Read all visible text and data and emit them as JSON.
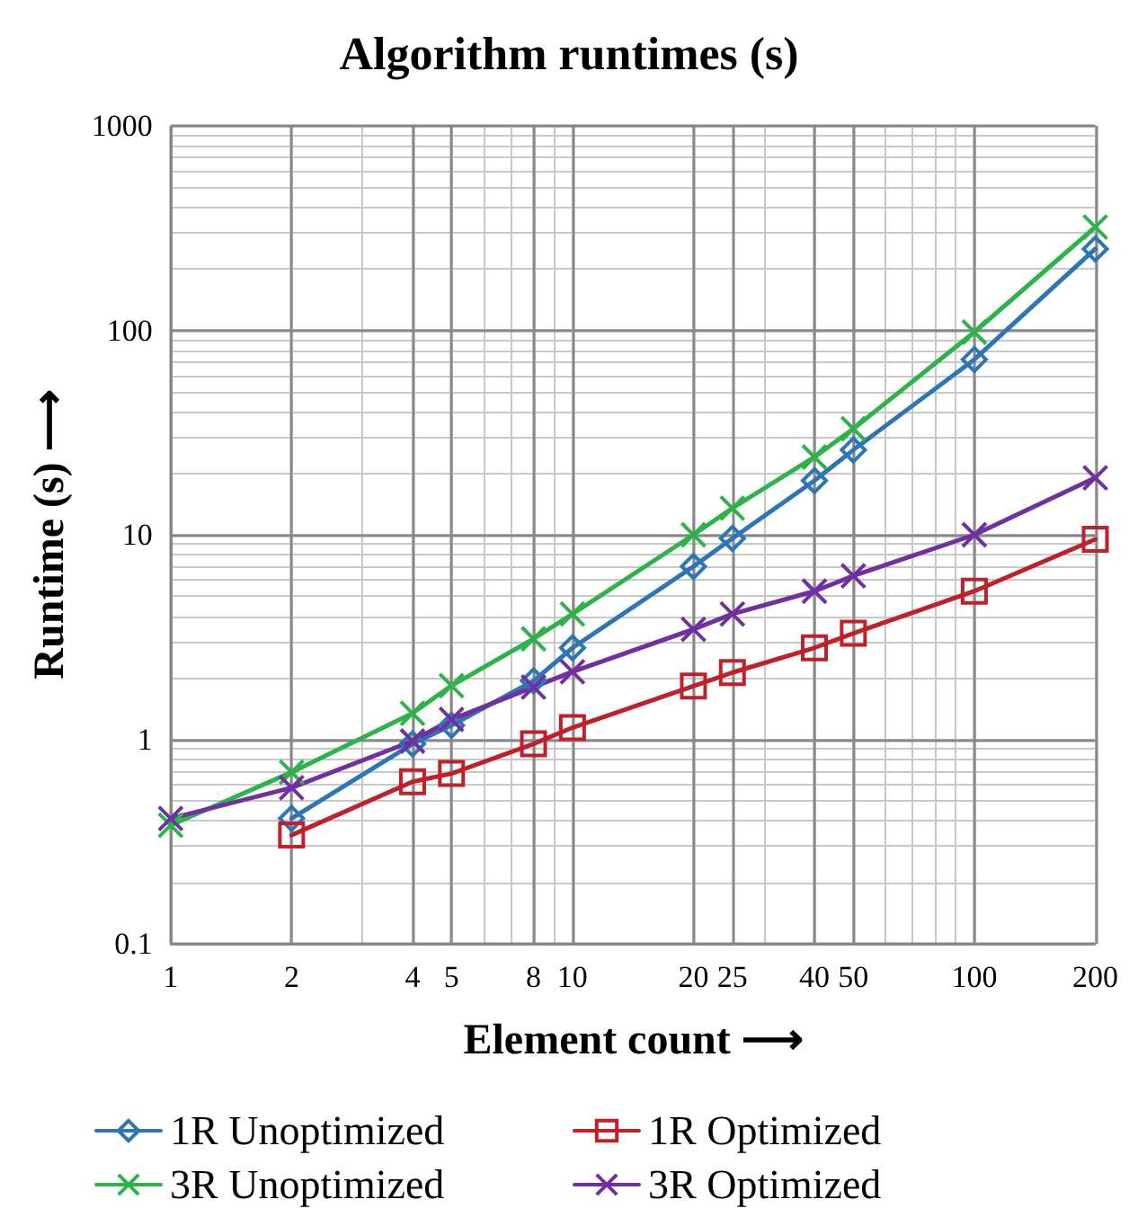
{
  "chart_data": {
    "type": "line",
    "title": "Algorithm runtimes (s)",
    "xlabel": "Element count ⟶",
    "ylabel": "Runtime (s) ⟶",
    "x": [
      1,
      2,
      4,
      5,
      8,
      10,
      20,
      25,
      40,
      50,
      100,
      200
    ],
    "series": [
      {
        "name": "1R Unoptimized",
        "color": "#2e75b6",
        "marker": "diamond",
        "values": [
          null,
          0.41,
          0.95,
          1.17,
          1.93,
          2.8,
          7.0,
          9.6,
          18.4,
          26,
          72,
          250
        ]
      },
      {
        "name": "1R Optimized",
        "color": "#c0202a",
        "marker": "square",
        "values": [
          null,
          0.34,
          0.62,
          0.68,
          0.95,
          1.14,
          1.82,
          2.12,
          2.8,
          3.3,
          5.3,
          9.5
        ]
      },
      {
        "name": "3R Unoptimized",
        "color": "#2db34a",
        "marker": "cross",
        "values": [
          0.38,
          0.69,
          1.34,
          1.83,
          3.1,
          4.1,
          10,
          13.5,
          24,
          33,
          98,
          320
        ]
      },
      {
        "name": "3R Optimized",
        "color": "#7030a0",
        "marker": "cross",
        "values": [
          0.41,
          0.58,
          0.98,
          1.25,
          1.8,
          2.14,
          3.45,
          4.1,
          5.3,
          6.3,
          10,
          19
        ]
      }
    ],
    "log": "xy",
    "xlim": [
      1,
      200
    ],
    "ylim": [
      0.1,
      1000
    ],
    "xticks": [
      1,
      2,
      4,
      5,
      8,
      10,
      20,
      25,
      40,
      50,
      100,
      200
    ],
    "yticks": [
      0.1,
      1,
      10,
      100,
      1000
    ],
    "grid": true,
    "legend": "bottom",
    "line_style": "solid"
  }
}
